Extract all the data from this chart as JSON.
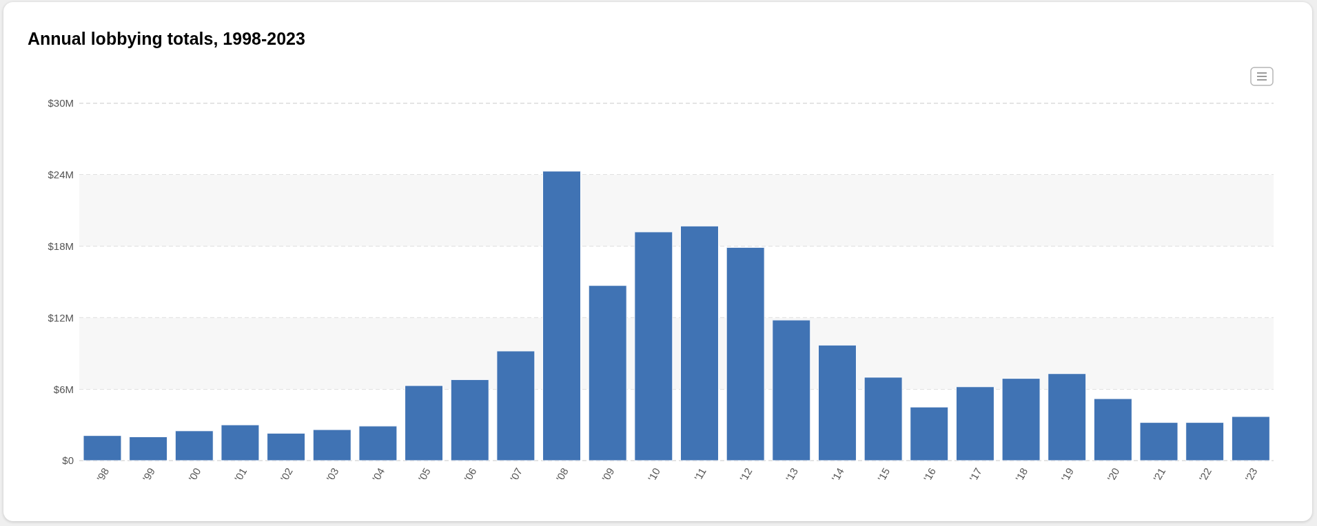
{
  "chart_data": {
    "type": "bar",
    "title": "Annual lobbying totals, 1998-2023",
    "categories": [
      "'98",
      "'99",
      "'00",
      "'01",
      "'02",
      "'03",
      "'04",
      "'05",
      "'06",
      "'07",
      "'08",
      "'09",
      "'10",
      "'11",
      "'12",
      "'13",
      "'14",
      "'15",
      "'16",
      "'17",
      "'18",
      "'19",
      "'20",
      "'21",
      "'22",
      "'23"
    ],
    "values": [
      2.1,
      2.0,
      2.5,
      3.0,
      2.3,
      2.6,
      2.9,
      6.3,
      6.8,
      9.2,
      24.3,
      14.7,
      19.2,
      19.7,
      17.9,
      11.8,
      9.7,
      7.0,
      4.5,
      6.2,
      6.9,
      7.3,
      5.2,
      3.2,
      3.2,
      3.7
    ],
    "color": "#4073b4",
    "ylim": [
      0,
      30
    ],
    "yticks": [
      {
        "value": 0,
        "label": "$0"
      },
      {
        "value": 6,
        "label": "$6M"
      },
      {
        "value": 12,
        "label": "$12M"
      },
      {
        "value": 18,
        "label": "$18M"
      },
      {
        "value": 24,
        "label": "$24M"
      },
      {
        "value": 30,
        "label": "$30M"
      }
    ],
    "grid": "y",
    "bands": [
      {
        "axis": "y",
        "from": 6,
        "to": 12,
        "color": "#f7f7f7"
      },
      {
        "axis": "y",
        "from": 18,
        "to": 24,
        "color": "#f7f7f7"
      }
    ]
  }
}
